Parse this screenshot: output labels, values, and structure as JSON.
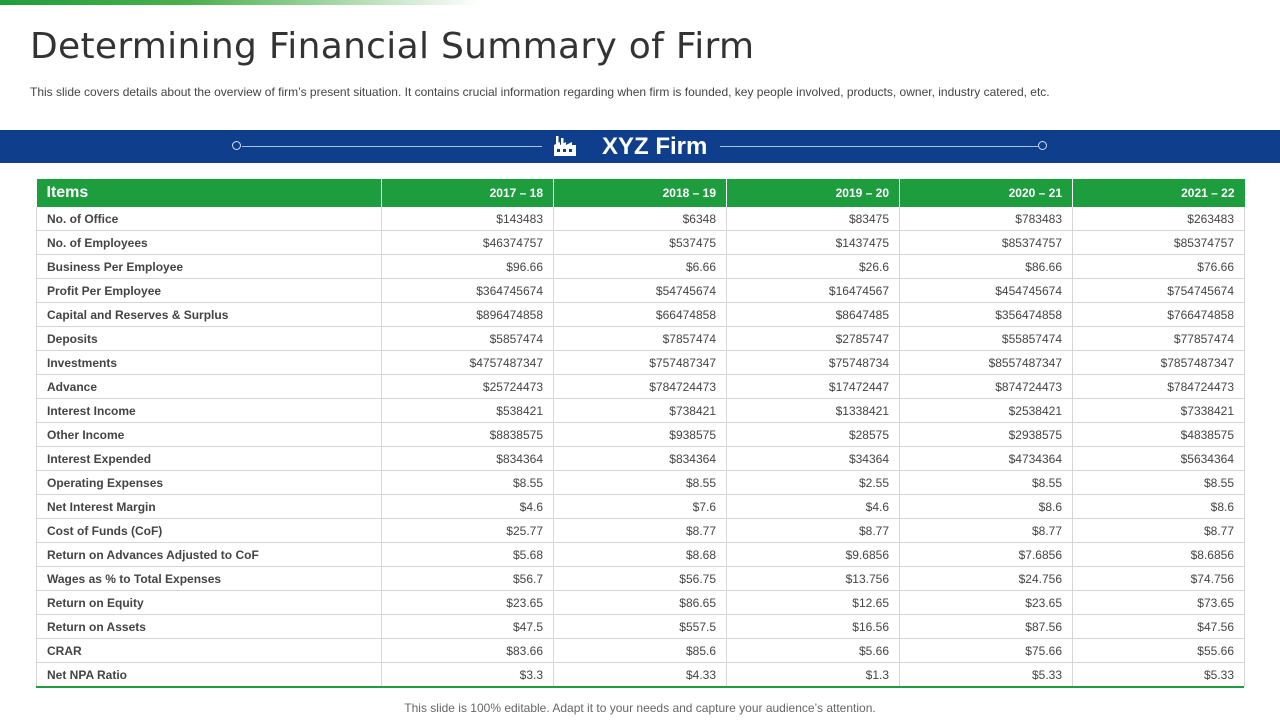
{
  "page": {
    "title": "Determining Financial Summary of Firm",
    "subtitle": "This slide covers details about the overview of firm’s present situation. It contains crucial information regarding when firm is founded, key people involved, products, owner, industry catered, etc.",
    "footer": "This slide is 100% editable. Adapt it to your needs and capture your audience’s attention."
  },
  "banner": {
    "title": "XYZ Firm",
    "icon": "factory-icon",
    "background": "#0e3e8c"
  },
  "colors": {
    "header_green": "#1e9d3f",
    "banner_blue": "#0e3e8c"
  },
  "table": {
    "headers": [
      "Items",
      "2017 – 18",
      "2018 – 19",
      "2019 – 20",
      "2020 – 21",
      "2021 – 22"
    ],
    "rows": [
      [
        "No. of Office",
        "$143483",
        "$6348",
        "$83475",
        "$783483",
        "$263483"
      ],
      [
        "No. of Employees",
        "$46374757",
        "$537475",
        "$1437475",
        "$85374757",
        "$85374757"
      ],
      [
        "Business Per Employee",
        "$96.66",
        "$6.66",
        "$26.6",
        "$86.66",
        "$76.66"
      ],
      [
        "Profit Per Employee",
        "$364745674",
        "$54745674",
        "$16474567",
        "$454745674",
        "$754745674"
      ],
      [
        "Capital and Reserves & Surplus",
        "$896474858",
        "$66474858",
        "$8647485",
        "$356474858",
        "$766474858"
      ],
      [
        "Deposits",
        "$5857474",
        "$7857474",
        "$2785747",
        "$55857474",
        "$77857474"
      ],
      [
        "Investments",
        "$4757487347",
        "$757487347",
        "$75748734",
        "$8557487347",
        "$7857487347"
      ],
      [
        "Advance",
        "$25724473",
        "$784724473",
        "$17472447",
        "$874724473",
        "$784724473"
      ],
      [
        "Interest Income",
        "$538421",
        "$738421",
        "$1338421",
        "$2538421",
        "$7338421"
      ],
      [
        "Other Income",
        "$8838575",
        "$938575",
        "$28575",
        "$2938575",
        "$4838575"
      ],
      [
        "Interest Expended",
        "$834364",
        "$834364",
        "$34364",
        "$4734364",
        "$5634364"
      ],
      [
        "Operating Expenses",
        "$8.55",
        "$8.55",
        "$2.55",
        "$8.55",
        "$8.55"
      ],
      [
        "Net Interest Margin",
        "$4.6",
        "$7.6",
        "$4.6",
        "$8.6",
        "$8.6"
      ],
      [
        "Cost of Funds (CoF)",
        "$25.77",
        "$8.77",
        "$8.77",
        "$8.77",
        "$8.77"
      ],
      [
        "Return on Advances Adjusted to CoF",
        "$5.68",
        "$8.68",
        "$9.6856",
        "$7.6856",
        "$8.6856"
      ],
      [
        "Wages as % to Total Expenses",
        "$56.7",
        "$56.75",
        "$13.756",
        "$24.756",
        "$74.756"
      ],
      [
        "Return on Equity",
        "$23.65",
        "$86.65",
        "$12.65",
        "$23.65",
        "$73.65"
      ],
      [
        "Return on Assets",
        "$47.5",
        "$557.5",
        "$16.56",
        "$87.56",
        "$47.56"
      ],
      [
        "CRAR",
        "$83.66",
        "$85.6",
        "$5.66",
        "$75.66",
        "$55.66"
      ],
      [
        "Net NPA Ratio",
        "$3.3",
        "$4.33",
        "$1.3",
        "$5.33",
        "$5.33"
      ]
    ]
  }
}
